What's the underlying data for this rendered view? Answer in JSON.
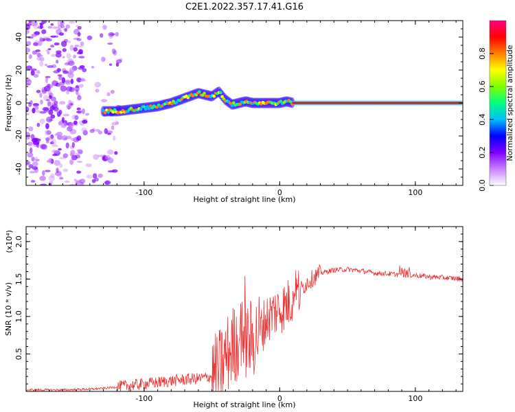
{
  "figure_title": "C2E1.2022.357.17.41.G16",
  "chart_data": [
    {
      "type": "heatmap",
      "title": "C2E1.2022.357.17.41.G16",
      "xlabel": "Height of straight line (km)",
      "ylabel": "Frequency (Hz)",
      "xlim": [
        -187,
        135
      ],
      "ylim": [
        -50,
        50
      ],
      "xticks": [
        -100,
        0,
        100
      ],
      "yticks": [
        -40,
        -20,
        0,
        20,
        40
      ],
      "colorbar": {
        "label": "Normalized spectral amplitude",
        "range": [
          0,
          1
        ],
        "ticks": [
          "0.0",
          "0.2",
          "0.4",
          "0.6",
          "0.8"
        ],
        "colors": [
          "#ffffff",
          "#c880ff",
          "#8000ff",
          "#0000ff",
          "#00c0ff",
          "#00ff80",
          "#80ff00",
          "#ffff00",
          "#ff8000",
          "#ff0000",
          "#ff0080"
        ]
      },
      "ridge": {
        "x": [
          -130,
          -120,
          -110,
          -100,
          -90,
          -80,
          -70,
          -60,
          -50,
          -45,
          -40,
          -35,
          -30,
          -25,
          -20,
          -15,
          -10,
          -5,
          0,
          5,
          10,
          50,
          100,
          135
        ],
        "frequency": [
          -5,
          -5,
          -4,
          -3,
          -2,
          0,
          3,
          6,
          4,
          7,
          2,
          -1,
          0,
          1,
          0,
          0,
          0,
          0,
          0,
          1,
          0,
          0,
          0,
          0
        ]
      }
    },
    {
      "type": "line",
      "xlabel": "Height of straight line (km)",
      "ylabel": "SNR (10 * v/v)",
      "y_multiplier": "(x10⁴)",
      "xlim": [
        -187,
        135
      ],
      "ylim": [
        0,
        2.2
      ],
      "xticks": [
        -100,
        0,
        100
      ],
      "yticks": [
        "0.5",
        "1.0",
        "1.5",
        "2.0"
      ],
      "series": [
        {
          "color": "#ee3333",
          "x": [
            -187,
            -160,
            -140,
            -130,
            -120,
            -110,
            -100,
            -90,
            -80,
            -70,
            -60,
            -50,
            -45,
            -40,
            -35,
            -30,
            -25,
            -20,
            -15,
            -10,
            -5,
            0,
            5,
            10,
            15,
            20,
            25,
            30,
            40,
            50,
            60,
            70,
            80,
            90,
            100,
            110,
            120,
            135
          ],
          "values": [
            0.02,
            0.02,
            0.03,
            0.04,
            0.06,
            0.08,
            0.1,
            0.12,
            0.14,
            0.16,
            0.17,
            0.2,
            0.28,
            0.45,
            0.6,
            0.7,
            0.65,
            0.7,
            0.8,
            0.95,
            1.05,
            1.1,
            1.15,
            1.25,
            1.35,
            1.45,
            1.52,
            1.58,
            1.62,
            1.63,
            1.61,
            1.58,
            1.57,
            1.56,
            1.55,
            1.53,
            1.52,
            1.5
          ]
        }
      ]
    }
  ]
}
